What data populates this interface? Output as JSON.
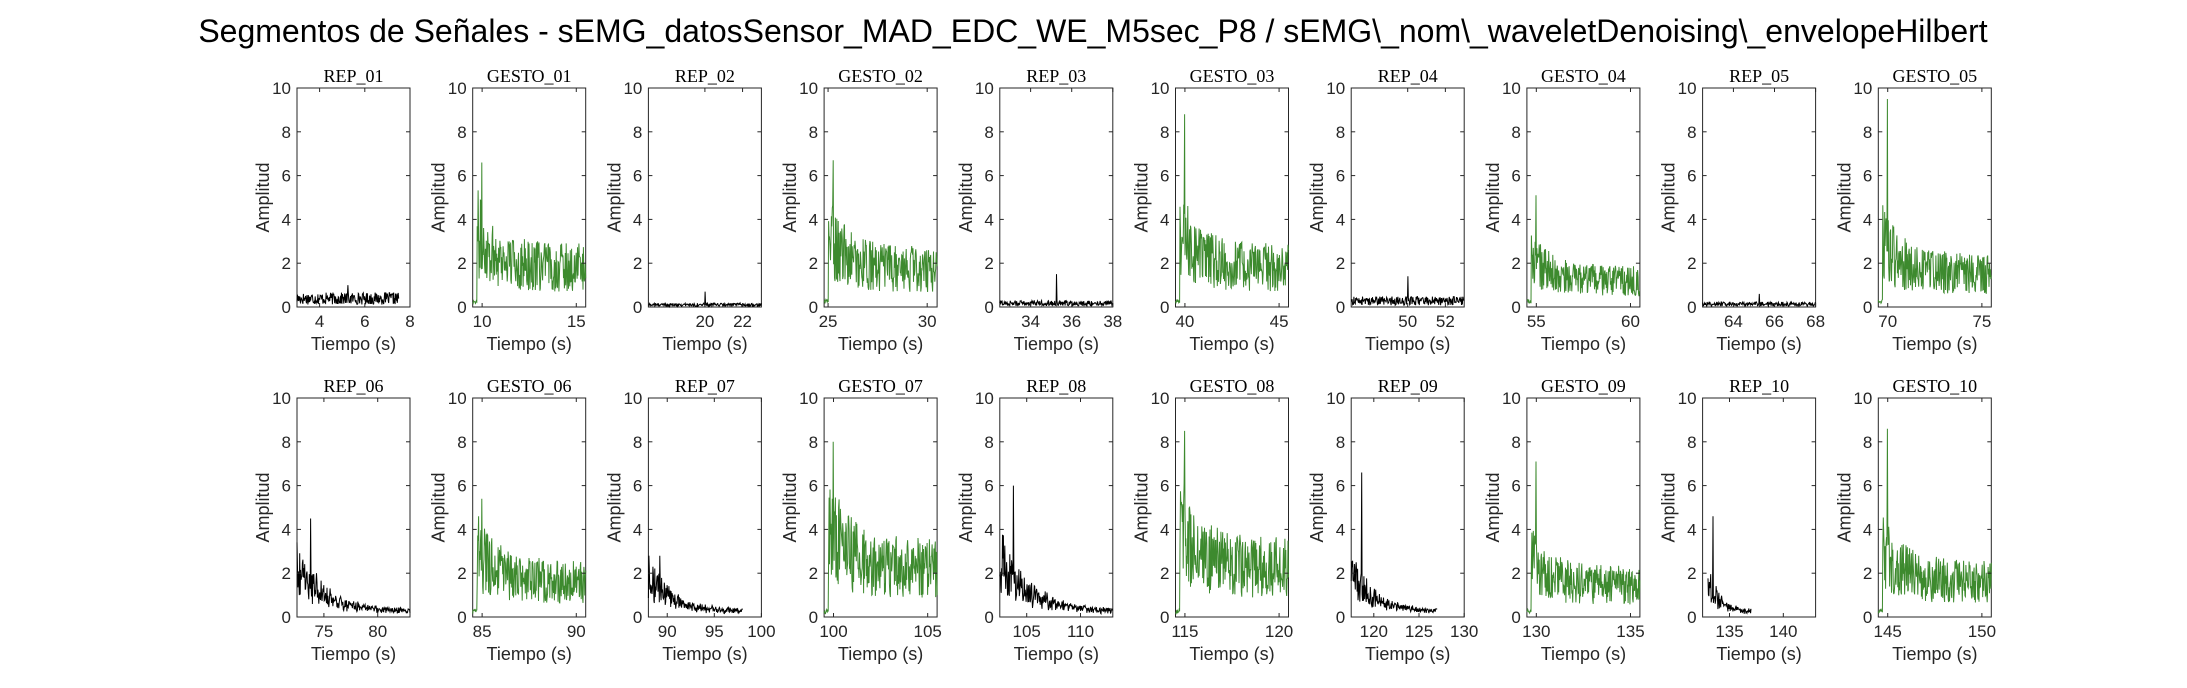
{
  "figure": {
    "title": "Segmentos de Señales - sEMG_datosSensor_MAD_EDC_WE_M5sec_P8 / sEMG\\_nom\\_waveletDenoising\\_envelopeHilbert"
  },
  "colors": {
    "rep": "#000000",
    "gesto": "#3d8a2e",
    "axis": "#262626"
  },
  "chart_data": [
    {
      "type": "line",
      "title": "REP_01",
      "kind": "rep",
      "xlabel": "Tiempo (s)",
      "ylabel": "Amplitud",
      "xlim": [
        3,
        8
      ],
      "ylim": [
        0,
        10
      ],
      "xticks": [
        4,
        6,
        8
      ],
      "yticks": [
        0,
        2,
        4,
        6,
        8,
        10
      ],
      "signal": {
        "x_start": 3,
        "x_end": 7.5,
        "peak": 1.0,
        "base": 0.55,
        "decay": "flat"
      }
    },
    {
      "type": "line",
      "title": "GESTO_01",
      "kind": "gesto",
      "xlabel": "Tiempo (s)",
      "ylabel": "Amplitud",
      "xlim": [
        9.5,
        15.5
      ],
      "ylim": [
        0,
        10
      ],
      "xticks": [
        10,
        15
      ],
      "yticks": [
        0,
        2,
        4,
        6,
        8,
        10
      ],
      "signal": {
        "x_start": 9.5,
        "x_end": 15.5,
        "peak": 6.6,
        "base": 2.0,
        "decay": "slow"
      }
    },
    {
      "type": "line",
      "title": "REP_02",
      "kind": "rep",
      "xlabel": "Tiempo (s)",
      "ylabel": "Amplitud",
      "xlim": [
        17,
        23
      ],
      "ylim": [
        0,
        10
      ],
      "xticks": [
        20,
        22
      ],
      "yticks": [
        0,
        2,
        4,
        6,
        8,
        10
      ],
      "signal": {
        "x_start": 17,
        "x_end": 23,
        "peak": 0.7,
        "base": 0.15,
        "decay": "flat"
      }
    },
    {
      "type": "line",
      "title": "GESTO_02",
      "kind": "gesto",
      "xlabel": "Tiempo (s)",
      "ylabel": "Amplitud",
      "xlim": [
        24.8,
        30.5
      ],
      "ylim": [
        0,
        10
      ],
      "xticks": [
        25,
        30
      ],
      "yticks": [
        0,
        2,
        4,
        6,
        8,
        10
      ],
      "signal": {
        "x_start": 24.8,
        "x_end": 30.5,
        "peak": 6.7,
        "base": 1.9,
        "decay": "slow"
      }
    },
    {
      "type": "line",
      "title": "REP_03",
      "kind": "rep",
      "xlabel": "Tiempo (s)",
      "ylabel": "Amplitud",
      "xlim": [
        32.5,
        38
      ],
      "ylim": [
        0,
        10
      ],
      "xticks": [
        34,
        36,
        38
      ],
      "yticks": [
        0,
        2,
        4,
        6,
        8,
        10
      ],
      "signal": {
        "x_start": 32.5,
        "x_end": 38,
        "peak": 1.5,
        "base": 0.25,
        "decay": "flat"
      }
    },
    {
      "type": "line",
      "title": "GESTO_03",
      "kind": "gesto",
      "xlabel": "Tiempo (s)",
      "ylabel": "Amplitud",
      "xlim": [
        39.5,
        45.5
      ],
      "ylim": [
        0,
        10
      ],
      "xticks": [
        40,
        45
      ],
      "yticks": [
        0,
        2,
        4,
        6,
        8,
        10
      ],
      "signal": {
        "x_start": 39.5,
        "x_end": 45.5,
        "peak": 8.8,
        "base": 2.0,
        "decay": "slow"
      }
    },
    {
      "type": "line",
      "title": "REP_04",
      "kind": "rep",
      "xlabel": "Tiempo (s)",
      "ylabel": "Amplitud",
      "xlim": [
        47,
        53
      ],
      "ylim": [
        0,
        10
      ],
      "xticks": [
        50,
        52
      ],
      "yticks": [
        0,
        2,
        4,
        6,
        8,
        10
      ],
      "signal": {
        "x_start": 47,
        "x_end": 53,
        "peak": 1.4,
        "base": 0.4,
        "decay": "flat"
      }
    },
    {
      "type": "line",
      "title": "GESTO_04",
      "kind": "gesto",
      "xlabel": "Tiempo (s)",
      "ylabel": "Amplitud",
      "xlim": [
        54.5,
        60.5
      ],
      "ylim": [
        0,
        10
      ],
      "xticks": [
        55,
        60
      ],
      "yticks": [
        0,
        2,
        4,
        6,
        8,
        10
      ],
      "signal": {
        "x_start": 54.5,
        "x_end": 60.5,
        "peak": 5.1,
        "base": 1.3,
        "decay": "slow"
      }
    },
    {
      "type": "line",
      "title": "REP_05",
      "kind": "rep",
      "xlabel": "Tiempo (s)",
      "ylabel": "Amplitud",
      "xlim": [
        62.5,
        68
      ],
      "ylim": [
        0,
        10
      ],
      "xticks": [
        64,
        66,
        68
      ],
      "yticks": [
        0,
        2,
        4,
        6,
        8,
        10
      ],
      "signal": {
        "x_start": 62.5,
        "x_end": 68,
        "peak": 0.6,
        "base": 0.2,
        "decay": "flat"
      }
    },
    {
      "type": "line",
      "title": "GESTO_05",
      "kind": "gesto",
      "xlabel": "Tiempo (s)",
      "ylabel": "Amplitud",
      "xlim": [
        69.5,
        75.5
      ],
      "ylim": [
        0,
        10
      ],
      "xticks": [
        70,
        75
      ],
      "yticks": [
        0,
        2,
        4,
        6,
        8,
        10
      ],
      "signal": {
        "x_start": 69.5,
        "x_end": 75.5,
        "peak": 9.5,
        "base": 1.7,
        "decay": "slow"
      }
    },
    {
      "type": "line",
      "title": "REP_06",
      "kind": "rep",
      "xlabel": "Tiempo (s)",
      "ylabel": "Amplitud",
      "xlim": [
        72.5,
        83
      ],
      "ylim": [
        0,
        10
      ],
      "xticks": [
        75,
        80
      ],
      "yticks": [
        0,
        2,
        4,
        6,
        8,
        10
      ],
      "signal": {
        "x_start": 72.5,
        "x_end": 83,
        "peak": 4.5,
        "base": 2.2,
        "decay": "fast"
      }
    },
    {
      "type": "line",
      "title": "GESTO_06",
      "kind": "gesto",
      "xlabel": "Tiempo (s)",
      "ylabel": "Amplitud",
      "xlim": [
        84.5,
        90.5
      ],
      "ylim": [
        0,
        10
      ],
      "xticks": [
        85,
        90
      ],
      "yticks": [
        0,
        2,
        4,
        6,
        8,
        10
      ],
      "signal": {
        "x_start": 84.5,
        "x_end": 90.5,
        "peak": 5.4,
        "base": 1.8,
        "decay": "slow"
      }
    },
    {
      "type": "line",
      "title": "REP_07",
      "kind": "rep",
      "xlabel": "Tiempo (s)",
      "ylabel": "Amplitud",
      "xlim": [
        88,
        100
      ],
      "ylim": [
        0,
        10
      ],
      "xticks": [
        90,
        95,
        100
      ],
      "yticks": [
        0,
        2,
        4,
        6,
        8,
        10
      ],
      "signal": {
        "x_start": 88,
        "x_end": 98,
        "peak": 2.8,
        "base": 1.8,
        "decay": "fast"
      }
    },
    {
      "type": "line",
      "title": "GESTO_07",
      "kind": "gesto",
      "xlabel": "Tiempo (s)",
      "ylabel": "Amplitud",
      "xlim": [
        99.5,
        105.5
      ],
      "ylim": [
        0,
        10
      ],
      "xticks": [
        100,
        105
      ],
      "yticks": [
        0,
        2,
        4,
        6,
        8,
        10
      ],
      "signal": {
        "x_start": 99.5,
        "x_end": 105.5,
        "peak": 8.0,
        "base": 2.5,
        "decay": "slow"
      }
    },
    {
      "type": "line",
      "title": "REP_08",
      "kind": "rep",
      "xlabel": "Tiempo (s)",
      "ylabel": "Amplitud",
      "xlim": [
        102.5,
        113
      ],
      "ylim": [
        0,
        10
      ],
      "xticks": [
        105,
        110
      ],
      "yticks": [
        0,
        2,
        4,
        6,
        8,
        10
      ],
      "signal": {
        "x_start": 102.5,
        "x_end": 113,
        "peak": 6.0,
        "base": 2.8,
        "decay": "fast"
      }
    },
    {
      "type": "line",
      "title": "GESTO_08",
      "kind": "gesto",
      "xlabel": "Tiempo (s)",
      "ylabel": "Amplitud",
      "xlim": [
        114.5,
        120.5
      ],
      "ylim": [
        0,
        10
      ],
      "xticks": [
        115,
        120
      ],
      "yticks": [
        0,
        2,
        4,
        6,
        8,
        10
      ],
      "signal": {
        "x_start": 114.5,
        "x_end": 120.5,
        "peak": 8.5,
        "base": 2.5,
        "decay": "slow"
      }
    },
    {
      "type": "line",
      "title": "REP_09",
      "kind": "rep",
      "xlabel": "Tiempo (s)",
      "ylabel": "Amplitud",
      "xlim": [
        117.5,
        130
      ],
      "ylim": [
        0,
        10
      ],
      "xticks": [
        120,
        125,
        130
      ],
      "yticks": [
        0,
        2,
        4,
        6,
        8,
        10
      ],
      "signal": {
        "x_start": 117.5,
        "x_end": 127,
        "peak": 6.6,
        "base": 2.0,
        "decay": "fast"
      }
    },
    {
      "type": "line",
      "title": "GESTO_09",
      "kind": "gesto",
      "xlabel": "Tiempo (s)",
      "ylabel": "Amplitud",
      "xlim": [
        129.5,
        135.5
      ],
      "ylim": [
        0,
        10
      ],
      "xticks": [
        130,
        135
      ],
      "yticks": [
        0,
        2,
        4,
        6,
        8,
        10
      ],
      "signal": {
        "x_start": 129.5,
        "x_end": 135.5,
        "peak": 7.1,
        "base": 1.6,
        "decay": "slow"
      }
    },
    {
      "type": "line",
      "title": "REP_10",
      "kind": "rep",
      "xlabel": "Tiempo (s)",
      "ylabel": "Amplitud",
      "xlim": [
        132.5,
        143
      ],
      "ylim": [
        0,
        10
      ],
      "xticks": [
        135,
        140
      ],
      "yticks": [
        0,
        2,
        4,
        6,
        8,
        10
      ],
      "signal": {
        "x_start": 133,
        "x_end": 137,
        "peak": 4.6,
        "base": 1.6,
        "decay": "fast"
      }
    },
    {
      "type": "line",
      "title": "GESTO_10",
      "kind": "gesto",
      "xlabel": "Tiempo (s)",
      "ylabel": "Amplitud",
      "xlim": [
        144.5,
        150.5
      ],
      "ylim": [
        0,
        10
      ],
      "xticks": [
        145,
        150
      ],
      "yticks": [
        0,
        2,
        4,
        6,
        8,
        10
      ],
      "signal": {
        "x_start": 144.5,
        "x_end": 150.5,
        "peak": 8.6,
        "base": 1.8,
        "decay": "slow"
      }
    }
  ]
}
